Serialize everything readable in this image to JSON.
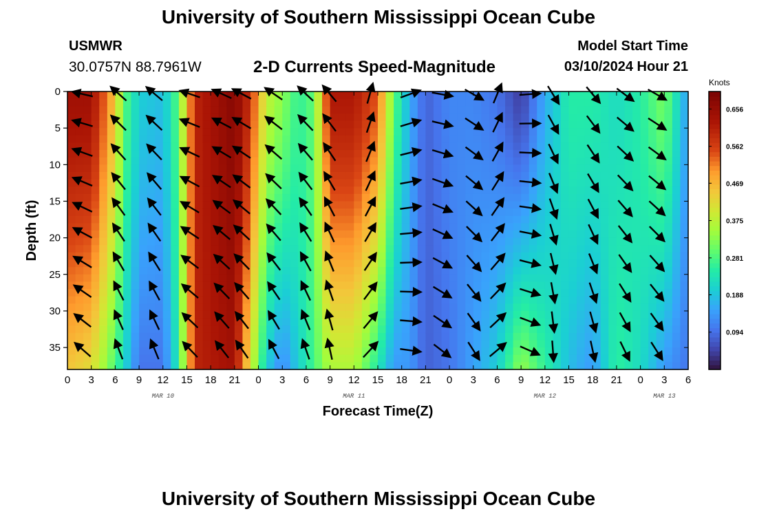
{
  "header": {
    "title": "University of Southern Mississippi Ocean Cube",
    "station": "USMWR",
    "coordinates": "30.0757N  88.7961W",
    "plot_title": "2-D Currents Speed-Magnitude",
    "model_start_label": "Model Start Time",
    "model_start_value": "03/10/2024 Hour 21"
  },
  "footer": {
    "title": "University of Southern Mississippi Ocean Cube"
  },
  "chart_data": {
    "type": "heatmap",
    "title": "2-D Currents Speed-Magnitude",
    "xlabel": "Forecast Time(Z)",
    "ylabel": "Depth (ft)",
    "x_range_hours": [
      0,
      78
    ],
    "y_range_ft": [
      0,
      38
    ],
    "x_ticks": [
      "0",
      "3",
      "6",
      "9",
      "12",
      "15",
      "18",
      "21",
      "0",
      "3",
      "6",
      "9",
      "12",
      "15",
      "18",
      "21",
      "0",
      "3",
      "6",
      "9",
      "12",
      "15",
      "18",
      "21",
      "0",
      "3",
      "6"
    ],
    "y_ticks": [
      0,
      5,
      10,
      15,
      20,
      25,
      30,
      35
    ],
    "day_labels": [
      {
        "label": "MAR 10",
        "hour": 12
      },
      {
        "label": "MAR 11",
        "hour": 36
      },
      {
        "label": "MAR 12",
        "hour": 60
      },
      {
        "label": "MAR 13",
        "hour": 75
      }
    ],
    "colorbar": {
      "units": "Knots",
      "min": 0.0,
      "max": 0.7,
      "tick_labels": [
        "0.656",
        "0.562",
        "0.469",
        "0.375",
        "0.281",
        "0.188",
        "0.094"
      ],
      "tick_values": [
        0.656,
        0.562,
        0.469,
        0.375,
        0.281,
        0.188,
        0.094
      ]
    },
    "speed_by_hour": [
      {
        "hour": 0,
        "surface": 0.64,
        "bottom": 0.45
      },
      {
        "hour": 3,
        "surface": 0.64,
        "bottom": 0.42
      },
      {
        "hour": 6,
        "surface": 0.45,
        "bottom": 0.28
      },
      {
        "hour": 7,
        "surface": 0.3,
        "bottom": 0.22
      },
      {
        "hour": 9,
        "surface": 0.2,
        "bottom": 0.1
      },
      {
        "hour": 12,
        "surface": 0.18,
        "bottom": 0.1
      },
      {
        "hour": 14,
        "surface": 0.3,
        "bottom": 0.25
      },
      {
        "hour": 16,
        "surface": 0.6,
        "bottom": 0.6
      },
      {
        "hour": 21,
        "surface": 0.68,
        "bottom": 0.64
      },
      {
        "hour": 23,
        "surface": 0.58,
        "bottom": 0.4
      },
      {
        "hour": 25,
        "surface": 0.38,
        "bottom": 0.2
      },
      {
        "hour": 27,
        "surface": 0.33,
        "bottom": 0.12
      },
      {
        "hour": 29,
        "surface": 0.26,
        "bottom": 0.2
      },
      {
        "hour": 31,
        "surface": 0.3,
        "bottom": 0.28
      },
      {
        "hour": 33,
        "surface": 0.62,
        "bottom": 0.36
      },
      {
        "hour": 36,
        "surface": 0.62,
        "bottom": 0.36
      },
      {
        "hour": 39,
        "surface": 0.54,
        "bottom": 0.24
      },
      {
        "hour": 41,
        "surface": 0.3,
        "bottom": 0.14
      },
      {
        "hour": 43,
        "surface": 0.16,
        "bottom": 0.14
      },
      {
        "hour": 45,
        "surface": 0.08,
        "bottom": 0.08
      },
      {
        "hour": 48,
        "surface": 0.12,
        "bottom": 0.1
      },
      {
        "hour": 51,
        "surface": 0.12,
        "bottom": 0.15
      },
      {
        "hour": 54,
        "surface": 0.1,
        "bottom": 0.2
      },
      {
        "hour": 57,
        "surface": 0.04,
        "bottom": 0.34
      },
      {
        "hour": 60,
        "surface": 0.16,
        "bottom": 0.26
      },
      {
        "hour": 63,
        "surface": 0.25,
        "bottom": 0.18
      },
      {
        "hour": 66,
        "surface": 0.25,
        "bottom": 0.14
      },
      {
        "hour": 69,
        "surface": 0.22,
        "bottom": 0.26
      },
      {
        "hour": 72,
        "surface": 0.25,
        "bottom": 0.22
      },
      {
        "hour": 75,
        "surface": 0.32,
        "bottom": 0.14
      },
      {
        "hour": 78,
        "surface": 0.14,
        "bottom": 0.1
      }
    ],
    "vector_hours": [
      2,
      6.5,
      11,
      15.5,
      19.5,
      22,
      26,
      30,
      33,
      38,
      43,
      47,
      51,
      54,
      58,
      61,
      66,
      70,
      74
    ],
    "vector_depths": [
      0,
      4,
      8,
      12,
      15.5,
      19,
      23,
      27,
      31,
      35
    ],
    "vector_direction_deg_by_hour": [
      {
        "hour": 0,
        "direction": 275
      },
      {
        "hour": 6,
        "direction": 300
      },
      {
        "hour": 9,
        "direction": 10
      },
      {
        "hour": 12,
        "direction": 280
      },
      {
        "hour": 16,
        "direction": 290
      },
      {
        "hour": 24,
        "direction": 300
      },
      {
        "hour": 33,
        "direction": 320
      },
      {
        "hour": 42,
        "direction": 60
      },
      {
        "hour": 45,
        "direction": 90
      },
      {
        "hour": 51,
        "direction": 120
      },
      {
        "hour": 55,
        "direction": 350
      },
      {
        "hour": 60,
        "direction": 150
      },
      {
        "hour": 66,
        "direction": 140
      },
      {
        "hour": 72,
        "direction": 120
      },
      {
        "hour": 78,
        "direction": 120
      }
    ]
  }
}
